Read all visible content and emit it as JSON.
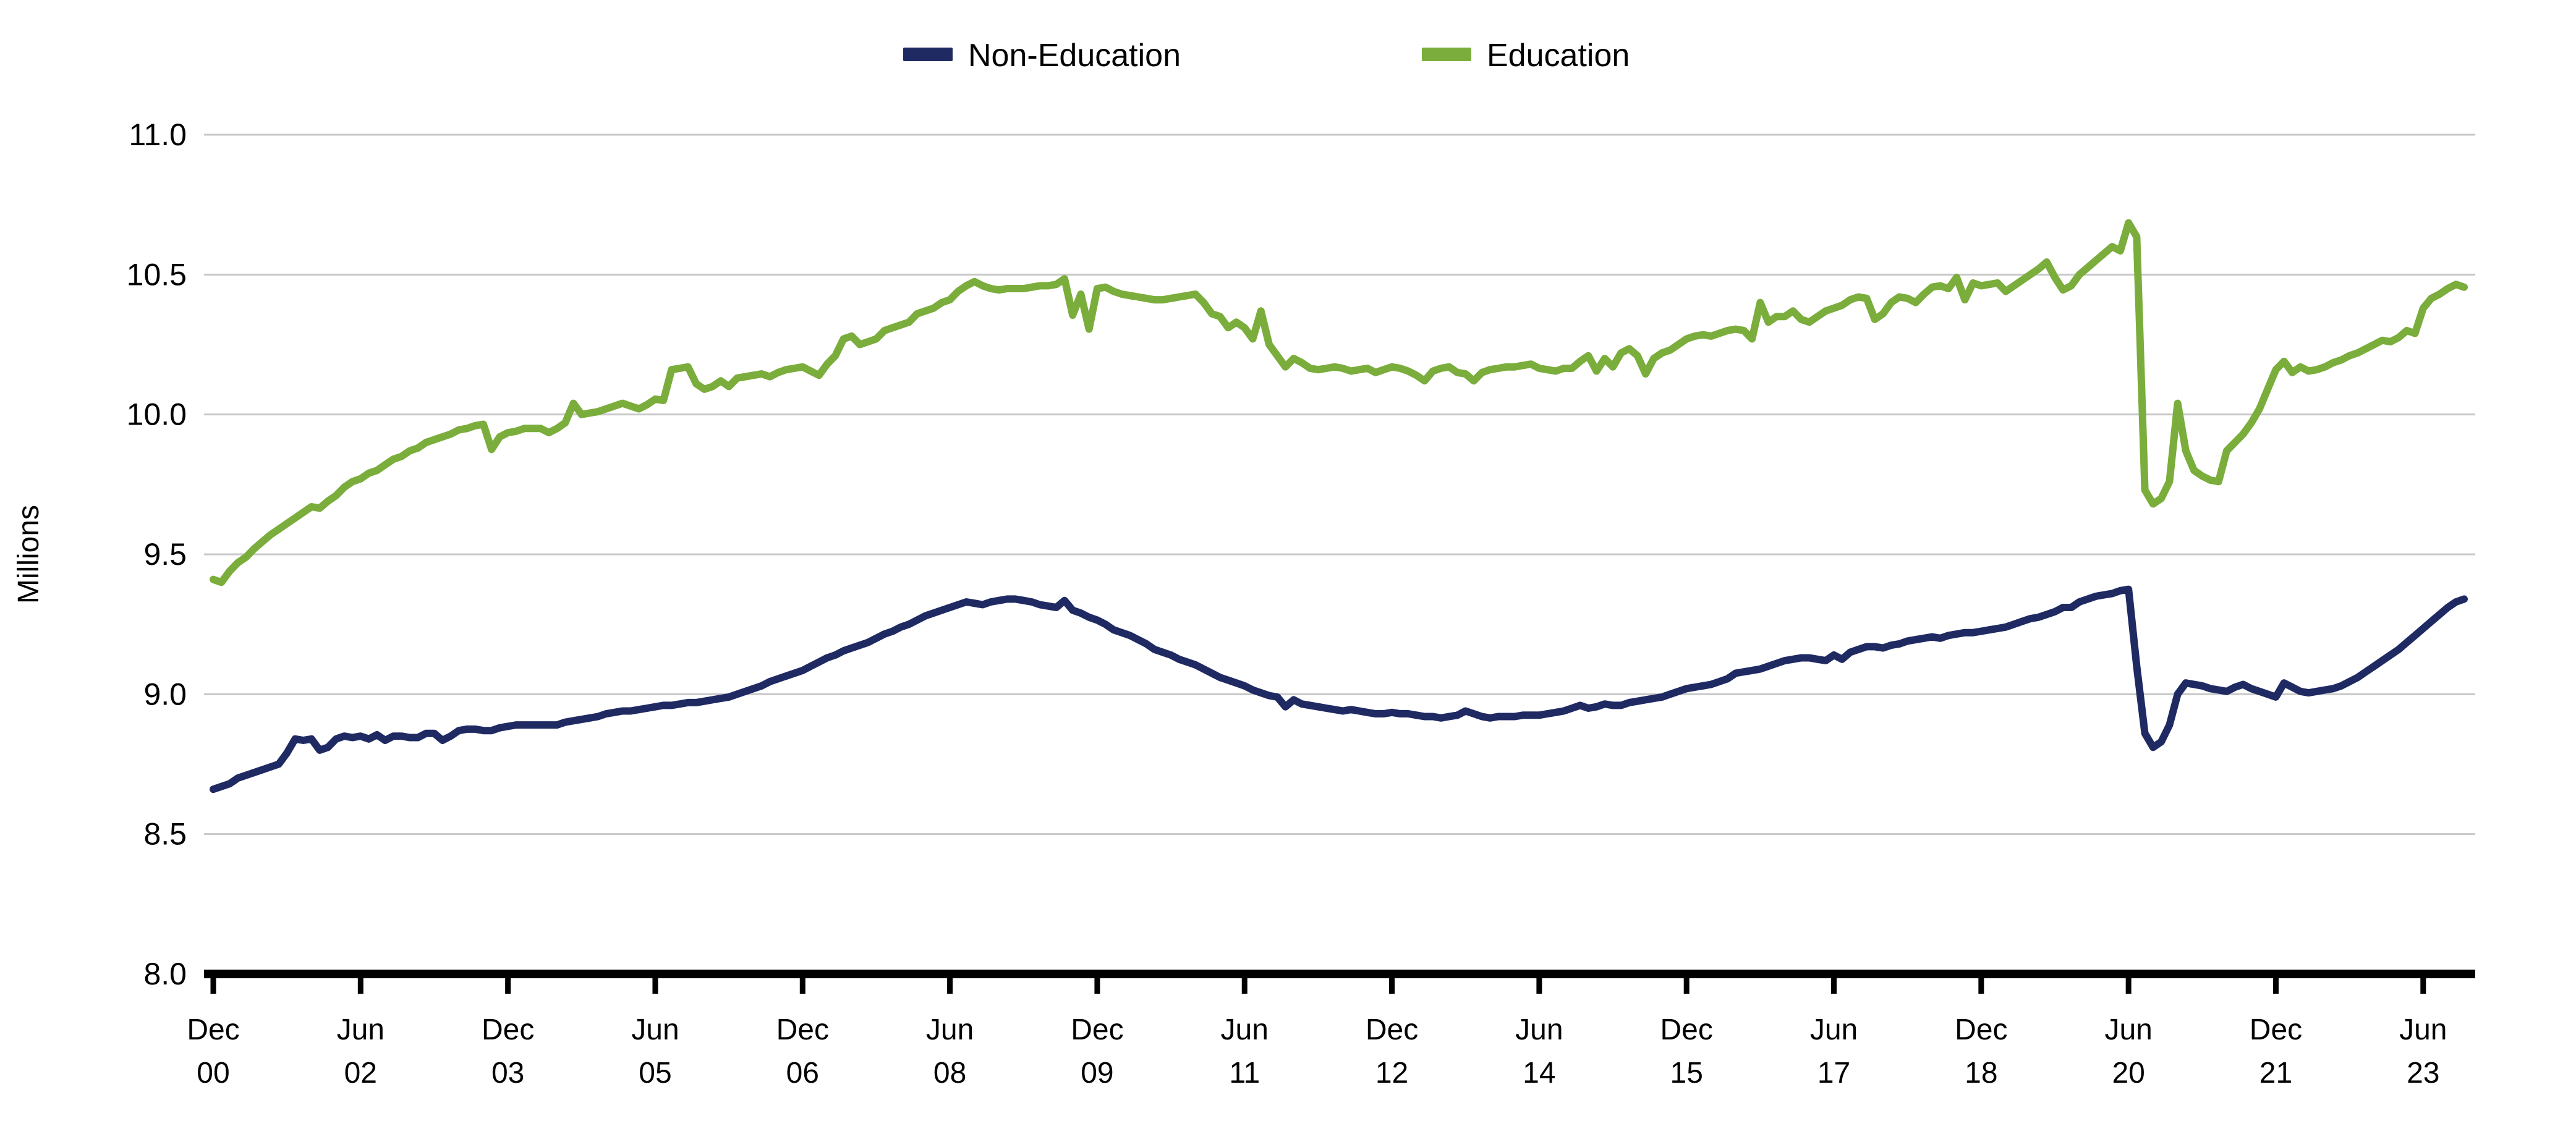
{
  "y_axis": {
    "label": "Millions"
  },
  "legend": {
    "non_education_label": "Non-Education",
    "education_label": "Education"
  },
  "colors": {
    "non_education": "#1f2a63",
    "education": "#7aad3b",
    "gridline": "#c8c8c8",
    "axis": "#000000"
  },
  "chart_data": {
    "type": "line",
    "title": "",
    "xlabel": "",
    "ylabel": "Millions",
    "ylim": [
      8.0,
      11.0
    ],
    "grid": true,
    "legend_position": "top-center",
    "x_start": "Dec 2000",
    "x_end": "Nov 2023",
    "frequency": "monthly",
    "ytick_labels": [
      "11.0",
      "10.5",
      "10.0",
      "9.5",
      "9.0",
      "8.5",
      "8.0"
    ],
    "ytick_values": [
      11.0,
      10.5,
      10.0,
      9.5,
      9.0,
      8.5,
      8.0
    ],
    "gridline_values": [
      11.0,
      10.5,
      10.0,
      9.5,
      9.0,
      8.5
    ],
    "xtick_every_n_points": 18,
    "xtick_labels": [
      [
        "Dec",
        "00"
      ],
      [
        "Jun",
        "02"
      ],
      [
        "Dec",
        "03"
      ],
      [
        "Jun",
        "05"
      ],
      [
        "Dec",
        "06"
      ],
      [
        "Jun",
        "08"
      ],
      [
        "Dec",
        "09"
      ],
      [
        "Jun",
        "11"
      ],
      [
        "Dec",
        "12"
      ],
      [
        "Jun",
        "14"
      ],
      [
        "Dec",
        "15"
      ],
      [
        "Jun",
        "17"
      ],
      [
        "Dec",
        "18"
      ],
      [
        "Jun",
        "20"
      ],
      [
        "Dec",
        "21"
      ],
      [
        "Jun",
        "23"
      ]
    ],
    "series": [
      {
        "name": "Non-Education",
        "color": "#1f2a63",
        "values": [
          8.66,
          8.67,
          8.68,
          8.7,
          8.71,
          8.72,
          8.73,
          8.74,
          8.75,
          8.79,
          8.84,
          8.835,
          8.84,
          8.8,
          8.81,
          8.84,
          8.85,
          8.845,
          8.85,
          8.84,
          8.855,
          8.835,
          8.85,
          8.85,
          8.845,
          8.845,
          8.86,
          8.86,
          8.835,
          8.85,
          8.87,
          8.875,
          8.875,
          8.87,
          8.87,
          8.88,
          8.885,
          8.89,
          8.89,
          8.89,
          8.89,
          8.89,
          8.89,
          8.9,
          8.905,
          8.91,
          8.915,
          8.92,
          8.93,
          8.935,
          8.94,
          8.94,
          8.945,
          8.95,
          8.955,
          8.96,
          8.96,
          8.965,
          8.97,
          8.97,
          8.975,
          8.98,
          8.985,
          8.99,
          9.0,
          9.01,
          9.02,
          9.03,
          9.045,
          9.055,
          9.065,
          9.075,
          9.085,
          9.1,
          9.115,
          9.13,
          9.14,
          9.155,
          9.165,
          9.175,
          9.185,
          9.2,
          9.215,
          9.225,
          9.24,
          9.25,
          9.265,
          9.28,
          9.29,
          9.3,
          9.31,
          9.32,
          9.33,
          9.325,
          9.32,
          9.33,
          9.335,
          9.34,
          9.34,
          9.335,
          9.33,
          9.32,
          9.315,
          9.31,
          9.335,
          9.3,
          9.29,
          9.275,
          9.265,
          9.25,
          9.23,
          9.22,
          9.21,
          9.195,
          9.18,
          9.16,
          9.15,
          9.14,
          9.125,
          9.115,
          9.105,
          9.09,
          9.075,
          9.06,
          9.05,
          9.04,
          9.03,
          9.015,
          9.005,
          8.995,
          8.99,
          8.955,
          8.98,
          8.965,
          8.96,
          8.955,
          8.95,
          8.945,
          8.94,
          8.945,
          8.94,
          8.935,
          8.93,
          8.93,
          8.935,
          8.93,
          8.93,
          8.925,
          8.92,
          8.92,
          8.915,
          8.92,
          8.925,
          8.94,
          8.93,
          8.92,
          8.915,
          8.92,
          8.92,
          8.92,
          8.925,
          8.925,
          8.925,
          8.93,
          8.935,
          8.94,
          8.95,
          8.96,
          8.95,
          8.955,
          8.965,
          8.96,
          8.96,
          8.97,
          8.975,
          8.98,
          8.985,
          8.99,
          9.0,
          9.01,
          9.02,
          9.025,
          9.03,
          9.035,
          9.045,
          9.055,
          9.075,
          9.08,
          9.085,
          9.09,
          9.1,
          9.11,
          9.12,
          9.125,
          9.13,
          9.13,
          9.125,
          9.12,
          9.14,
          9.125,
          9.15,
          9.16,
          9.17,
          9.17,
          9.165,
          9.175,
          9.18,
          9.19,
          9.195,
          9.2,
          9.205,
          9.2,
          9.21,
          9.215,
          9.22,
          9.22,
          9.225,
          9.23,
          9.235,
          9.24,
          9.25,
          9.26,
          9.27,
          9.275,
          9.285,
          9.295,
          9.31,
          9.31,
          9.33,
          9.34,
          9.35,
          9.355,
          9.36,
          9.37,
          9.375,
          9.1,
          8.86,
          8.81,
          8.83,
          8.89,
          9.0,
          9.04,
          9.035,
          9.03,
          9.02,
          9.015,
          9.01,
          9.025,
          9.035,
          9.02,
          9.01,
          9.0,
          8.99,
          9.04,
          9.025,
          9.01,
          9.005,
          9.01,
          9.015,
          9.02,
          9.03,
          9.045,
          9.06,
          9.08,
          9.1,
          9.12,
          9.14,
          9.16,
          9.185,
          9.21,
          9.235,
          9.26,
          9.285,
          9.31,
          9.33,
          9.34
        ]
      },
      {
        "name": "Education",
        "color": "#7aad3b",
        "values": [
          9.41,
          9.4,
          9.44,
          9.47,
          9.49,
          9.52,
          9.545,
          9.57,
          9.59,
          9.61,
          9.63,
          9.65,
          9.67,
          9.665,
          9.69,
          9.71,
          9.74,
          9.76,
          9.77,
          9.79,
          9.8,
          9.82,
          9.84,
          9.85,
          9.87,
          9.88,
          9.9,
          9.91,
          9.92,
          9.93,
          9.945,
          9.95,
          9.96,
          9.965,
          9.875,
          9.92,
          9.935,
          9.94,
          9.95,
          9.95,
          9.95,
          9.935,
          9.95,
          9.97,
          10.04,
          10.0,
          10.005,
          10.01,
          10.02,
          10.03,
          10.04,
          10.03,
          10.02,
          10.035,
          10.055,
          10.05,
          10.16,
          10.165,
          10.17,
          10.11,
          10.09,
          10.1,
          10.12,
          10.1,
          10.13,
          10.135,
          10.14,
          10.145,
          10.135,
          10.15,
          10.16,
          10.165,
          10.17,
          10.155,
          10.14,
          10.18,
          10.21,
          10.27,
          10.28,
          10.25,
          10.26,
          10.27,
          10.3,
          10.31,
          10.32,
          10.33,
          10.36,
          10.37,
          10.38,
          10.4,
          10.41,
          10.44,
          10.46,
          10.475,
          10.46,
          10.45,
          10.445,
          10.45,
          10.45,
          10.45,
          10.455,
          10.46,
          10.46,
          10.465,
          10.485,
          10.355,
          10.43,
          10.305,
          10.45,
          10.455,
          10.44,
          10.43,
          10.425,
          10.42,
          10.415,
          10.41,
          10.41,
          10.415,
          10.42,
          10.425,
          10.43,
          10.4,
          10.36,
          10.35,
          10.31,
          10.33,
          10.31,
          10.27,
          10.37,
          10.25,
          10.21,
          10.17,
          10.2,
          10.185,
          10.165,
          10.16,
          10.165,
          10.17,
          10.165,
          10.155,
          10.16,
          10.165,
          10.15,
          10.16,
          10.17,
          10.165,
          10.155,
          10.14,
          10.12,
          10.155,
          10.165,
          10.17,
          10.15,
          10.145,
          10.12,
          10.15,
          10.16,
          10.165,
          10.17,
          10.17,
          10.175,
          10.18,
          10.165,
          10.16,
          10.155,
          10.165,
          10.165,
          10.19,
          10.21,
          10.155,
          10.2,
          10.17,
          10.22,
          10.235,
          10.21,
          10.145,
          10.2,
          10.22,
          10.23,
          10.25,
          10.27,
          10.28,
          10.285,
          10.28,
          10.29,
          10.3,
          10.305,
          10.3,
          10.27,
          10.4,
          10.33,
          10.35,
          10.35,
          10.37,
          10.34,
          10.33,
          10.35,
          10.37,
          10.38,
          10.39,
          10.41,
          10.42,
          10.415,
          10.34,
          10.36,
          10.4,
          10.42,
          10.415,
          10.4,
          10.43,
          10.455,
          10.46,
          10.45,
          10.49,
          10.41,
          10.47,
          10.46,
          10.465,
          10.47,
          10.44,
          10.46,
          10.48,
          10.5,
          10.52,
          10.545,
          10.49,
          10.445,
          10.46,
          10.5,
          10.525,
          10.55,
          10.575,
          10.6,
          10.585,
          10.685,
          10.635,
          9.73,
          9.68,
          9.7,
          9.76,
          10.04,
          9.87,
          9.8,
          9.78,
          9.765,
          9.76,
          9.87,
          9.9,
          9.93,
          9.97,
          10.02,
          10.09,
          10.16,
          10.19,
          10.15,
          10.17,
          10.155,
          10.16,
          10.17,
          10.185,
          10.195,
          10.21,
          10.22,
          10.235,
          10.25,
          10.265,
          10.26,
          10.275,
          10.3,
          10.29,
          10.38,
          10.415,
          10.43,
          10.45,
          10.465,
          10.455
        ]
      }
    ]
  }
}
